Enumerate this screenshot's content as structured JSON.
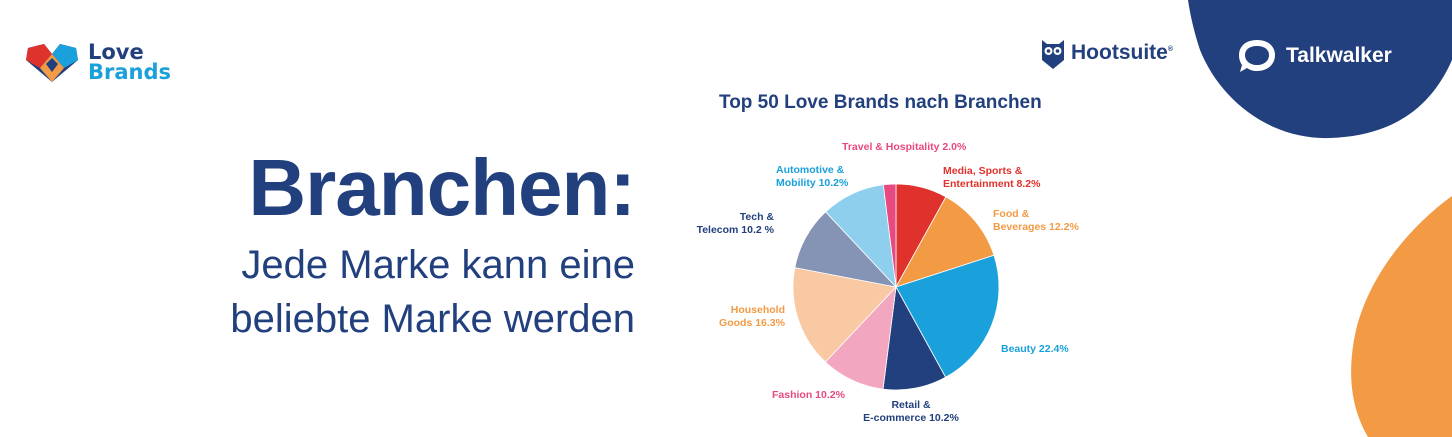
{
  "brand": {
    "line1": "Love",
    "line2": "Brands",
    "partner1": "Hootsuite",
    "partner2": "Talkwalker"
  },
  "headline": {
    "title": "Branchen:",
    "sub_line1": "Jede Marke kann eine",
    "sub_line2": "beliebte Marke werden"
  },
  "colors": {
    "navy": "#22407e",
    "orange": "#f39a45",
    "text_navy": "#1f3c7a"
  },
  "chart_data": {
    "type": "pie",
    "title": "Top 50 Love Brands nach Branchen",
    "slices": [
      {
        "label_lines": [
          "Media, Sports &",
          "Entertainment 8.2%"
        ],
        "value": 8.2,
        "color": "#e0322c",
        "label_color": "#e0322c"
      },
      {
        "label_lines": [
          "Food &",
          "Beverages 12.2%"
        ],
        "value": 12.2,
        "color": "#f39a45",
        "label_color": "#f39a45"
      },
      {
        "label_lines": [
          "Beauty 22.4%"
        ],
        "value": 22.4,
        "color": "#1aa0da",
        "label_color": "#1aa0da"
      },
      {
        "label_lines": [
          "Retail &",
          "E-commerce 10.2%"
        ],
        "value": 10.2,
        "color": "#22407e",
        "label_color": "#22407e"
      },
      {
        "label_lines": [
          "Fashion 10.2%"
        ],
        "value": 10.2,
        "color": "#f3a6c0",
        "label_color": "#e8497e"
      },
      {
        "label_lines": [
          "Household",
          "Goods 16.3%"
        ],
        "value": 16.3,
        "color": "#f8c9a2",
        "label_color": "#f39a45"
      },
      {
        "label_lines": [
          "Tech &",
          "Telecom 10.2 %"
        ],
        "value": 10.2,
        "color": "#8594b4",
        "label_color": "#22407e"
      },
      {
        "label_lines": [
          "Automotive &",
          "Mobility 10.2%"
        ],
        "value": 10.2,
        "color": "#8ecfee",
        "label_color": "#1aa0da"
      },
      {
        "label_lines": [
          "Travel & Hospitality 2.0%"
        ],
        "value": 2.0,
        "color": "#e8497e",
        "label_color": "#e8497e"
      }
    ]
  }
}
